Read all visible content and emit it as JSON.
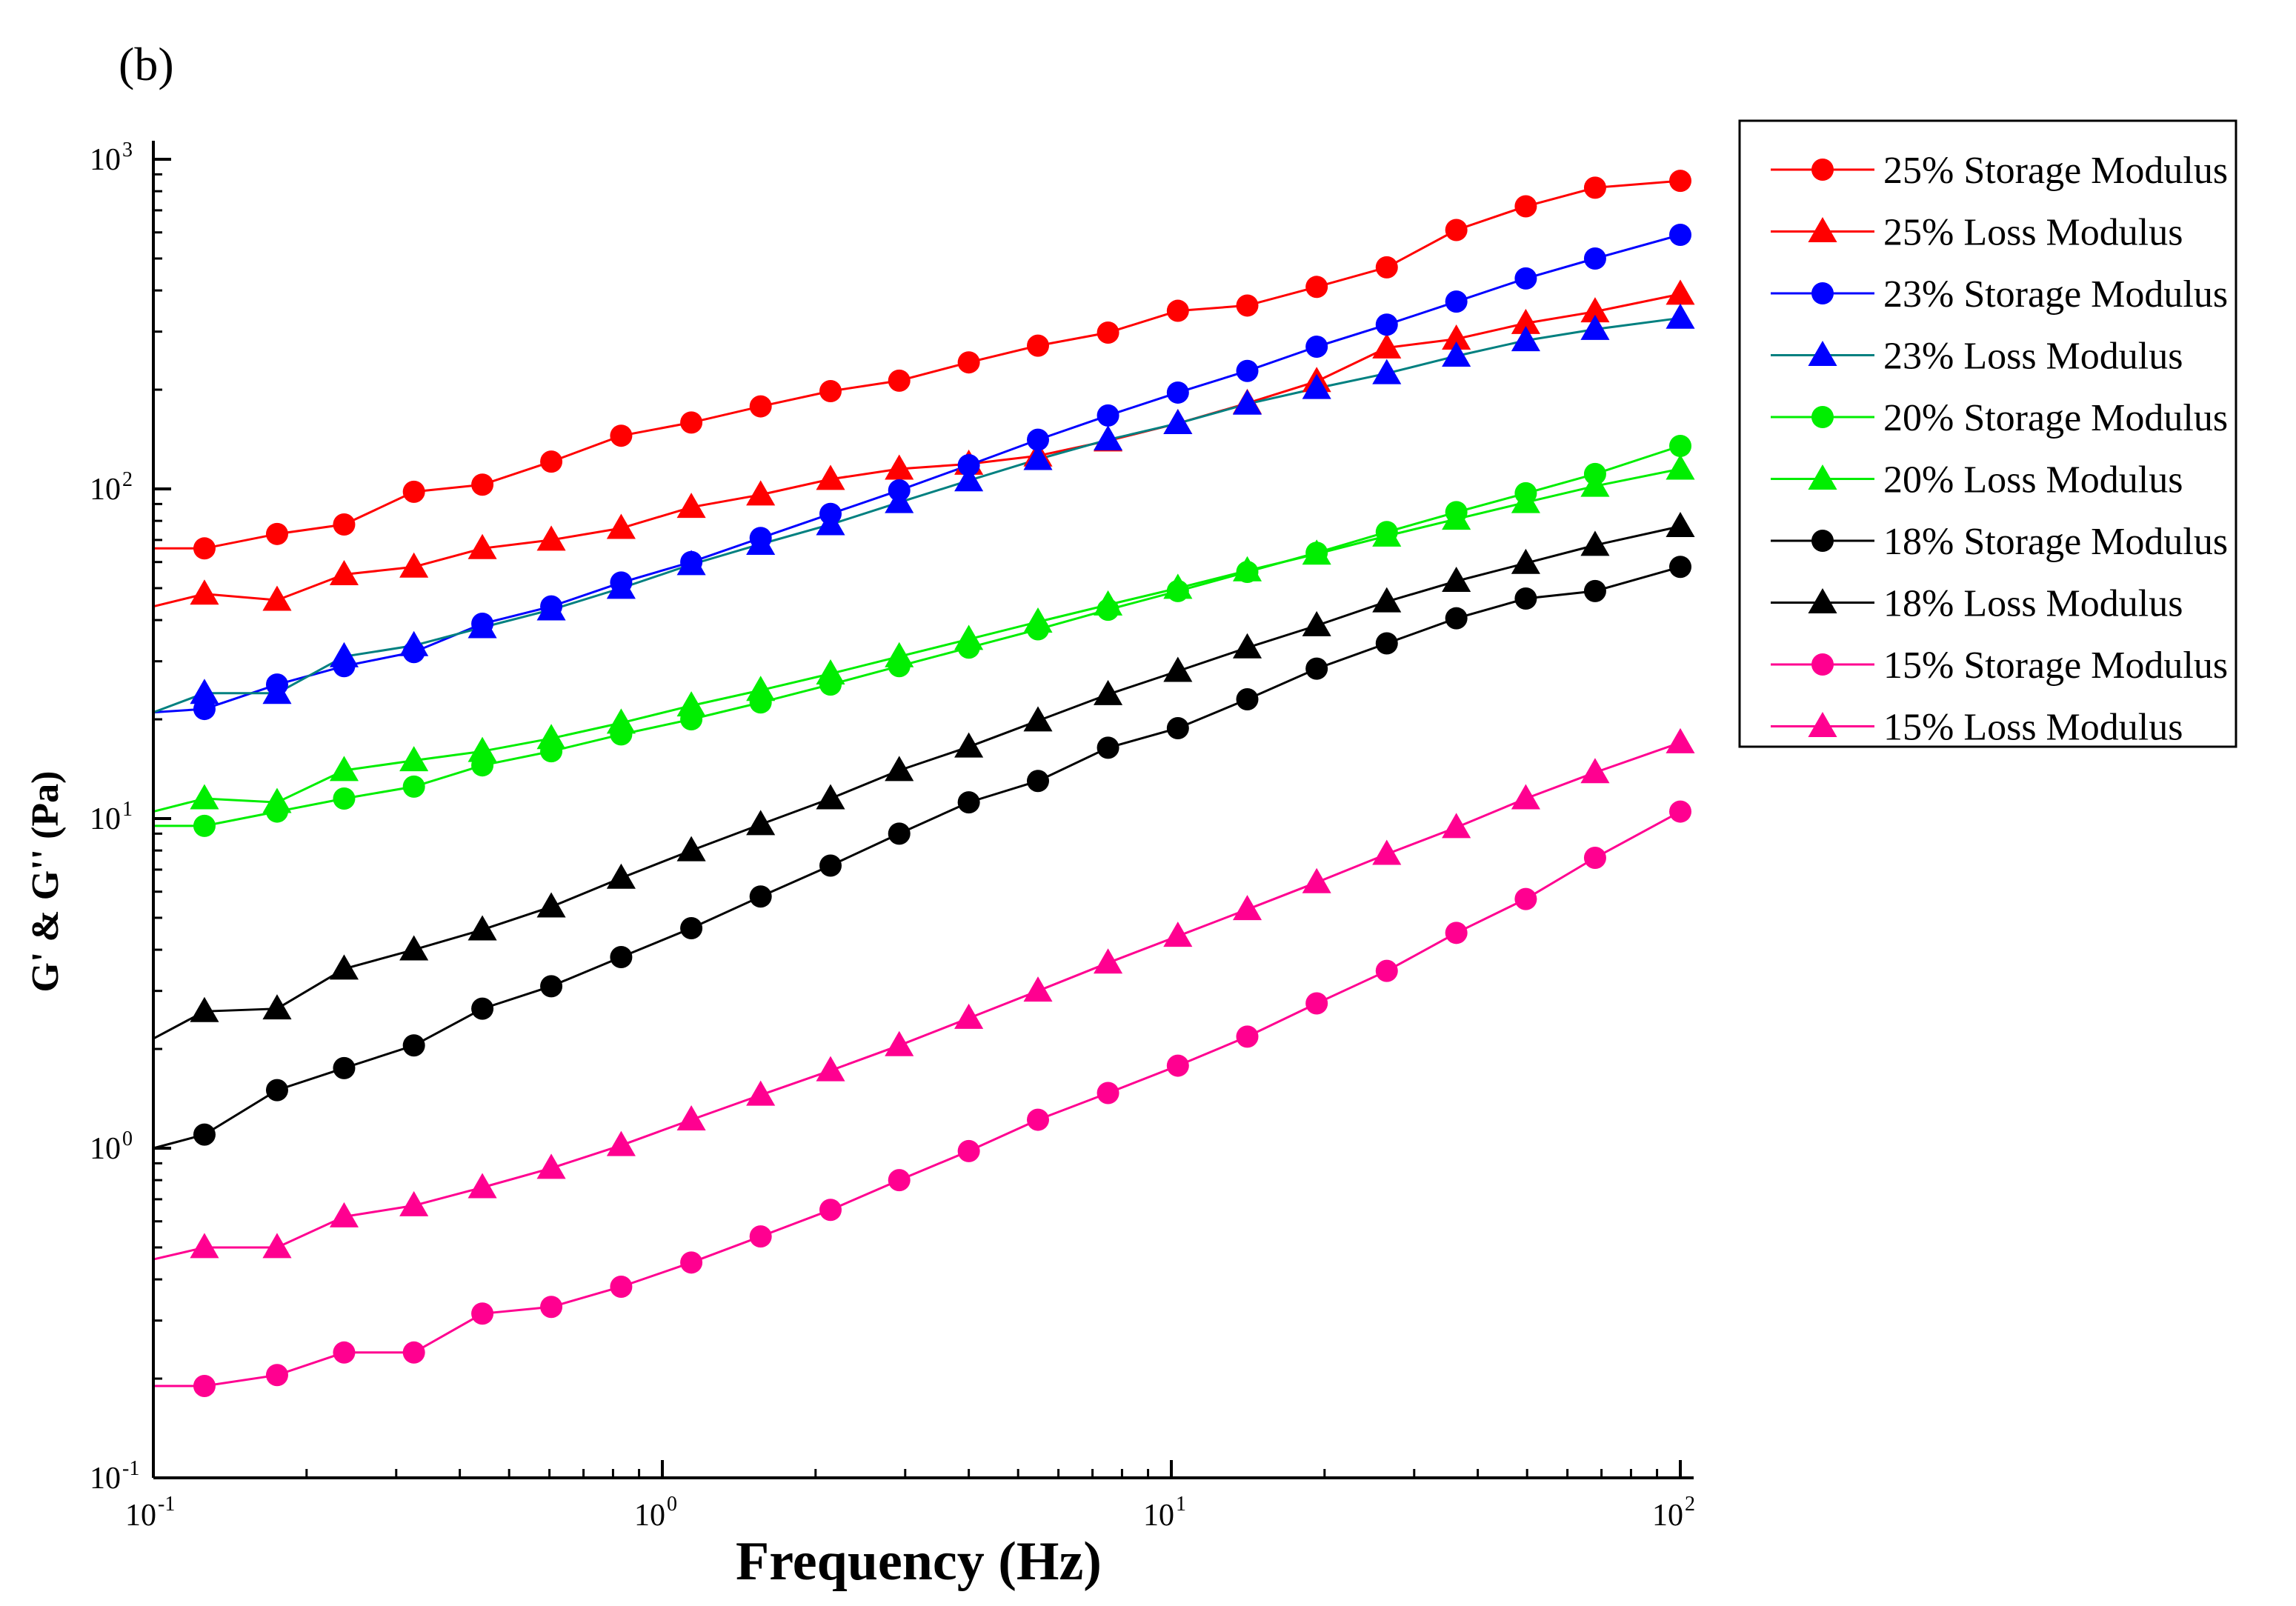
{
  "chart_data": {
    "type": "line",
    "panel_label": "(b)",
    "xlabel": "Frequency (Hz)",
    "ylabel": "G' & G'' (Pa)",
    "xscale": "log",
    "yscale": "log",
    "xlim": [
      0.1,
      100
    ],
    "ylim": [
      0.1,
      1000
    ],
    "x_ticks": [
      {
        "base": "10",
        "exp": "-1"
      },
      {
        "base": "10",
        "exp": "0"
      },
      {
        "base": "10",
        "exp": "1"
      },
      {
        "base": "10",
        "exp": "2"
      }
    ],
    "y_ticks": [
      {
        "base": "10",
        "exp": "-1"
      },
      {
        "base": "10",
        "exp": "0"
      },
      {
        "base": "10",
        "exp": "1"
      },
      {
        "base": "10",
        "exp": "2"
      },
      {
        "base": "10",
        "exp": "3"
      }
    ],
    "legend_position": "right-top",
    "x": [
      0.1,
      0.126,
      0.175,
      0.237,
      0.325,
      0.443,
      0.605,
      0.83,
      1.14,
      1.56,
      2.14,
      2.92,
      4.0,
      5.47,
      7.51,
      10.3,
      14.1,
      19.3,
      26.5,
      36.3,
      49.7,
      68.0,
      100.0
    ],
    "series": [
      {
        "name": "25% Storage Modulus",
        "color": "#ff0000",
        "marker": "circle",
        "marker_from_index": 1,
        "values": [
          66,
          66,
          73,
          78,
          98,
          103,
          121,
          145,
          159,
          178,
          198,
          213,
          242,
          272,
          298,
          347,
          360,
          410,
          470,
          610,
          720,
          820,
          860
        ]
      },
      {
        "name": "25% Loss Modulus",
        "color": "#ff0000",
        "marker": "triangle",
        "marker_from_index": 1,
        "values": [
          44,
          48,
          46,
          55,
          58,
          66,
          70,
          76,
          88,
          96,
          107,
          115,
          119,
          126,
          140,
          158,
          182,
          212,
          268,
          285,
          318,
          345,
          390
        ]
      },
      {
        "name": "23% Storage Modulus",
        "color": "#0000ff",
        "marker": "circle",
        "marker_from_index": 1,
        "values": [
          21,
          21.5,
          25.5,
          29,
          32,
          39,
          44,
          52,
          60,
          71,
          84,
          99,
          118,
          141,
          167,
          196,
          228,
          270,
          315,
          370,
          435,
          500,
          590
        ]
      },
      {
        "name": "23% Loss Modulus",
        "color": "#008080",
        "marker": "triangle",
        "marker_color": "#0000ff",
        "marker_from_index": 1,
        "values": [
          21,
          24,
          24,
          31,
          33.5,
          38,
          43,
          50,
          59,
          68,
          78,
          91,
          106,
          123,
          141,
          158,
          181,
          202,
          224,
          253,
          282,
          305,
          330
        ]
      },
      {
        "name": "20% Storage Modulus",
        "color": "#00ee00",
        "marker": "circle",
        "marker_from_index": 1,
        "values": [
          9.5,
          9.5,
          10.5,
          11.5,
          12.5,
          14.5,
          16,
          18,
          20,
          22.5,
          25.5,
          29,
          33,
          37.5,
          43,
          49,
          56,
          64,
          74,
          85,
          97,
          111,
          135
        ]
      },
      {
        "name": "20% Loss Modulus",
        "color": "#00ee00",
        "marker": "triangle",
        "marker_from_index": 1,
        "values": [
          10.5,
          11.5,
          11.2,
          14,
          15,
          16,
          17.5,
          19.5,
          22,
          24.5,
          27.5,
          31,
          35,
          39.5,
          44.5,
          50,
          56.5,
          63.5,
          72,
          81,
          91,
          102,
          115
        ]
      },
      {
        "name": "18% Storage Modulus",
        "color": "#000000",
        "marker": "circle",
        "marker_from_index": 1,
        "values": [
          1.0,
          1.1,
          1.5,
          1.75,
          2.05,
          2.65,
          3.1,
          3.8,
          4.65,
          5.8,
          7.2,
          9.0,
          11.2,
          13.0,
          16.4,
          18.8,
          23.0,
          28.5,
          34,
          40.5,
          46.5,
          49,
          58
        ]
      },
      {
        "name": "18% Loss Modulus",
        "color": "#000000",
        "marker": "triangle",
        "marker_from_index": 1,
        "values": [
          2.15,
          2.6,
          2.65,
          3.5,
          4.0,
          4.6,
          5.4,
          6.6,
          8.0,
          9.6,
          11.5,
          14,
          16.5,
          19.8,
          23.8,
          28,
          33,
          38.5,
          45.5,
          52.5,
          59.5,
          67.5,
          77
        ]
      },
      {
        "name": "15% Storage Modulus",
        "color": "#ff0090",
        "marker": "circle",
        "marker_from_index": 1,
        "values": [
          0.19,
          0.19,
          0.205,
          0.24,
          0.24,
          0.315,
          0.33,
          0.38,
          0.45,
          0.54,
          0.65,
          0.8,
          0.98,
          1.22,
          1.47,
          1.78,
          2.18,
          2.75,
          3.45,
          4.5,
          5.7,
          7.6,
          10.5
        ]
      },
      {
        "name": "15% Loss Modulus",
        "color": "#ff0090",
        "marker": "triangle",
        "marker_from_index": 1,
        "values": [
          0.46,
          0.5,
          0.5,
          0.62,
          0.67,
          0.76,
          0.87,
          1.02,
          1.22,
          1.45,
          1.72,
          2.05,
          2.48,
          3.0,
          3.65,
          4.4,
          5.3,
          6.4,
          7.8,
          9.4,
          11.5,
          13.8,
          17
        ]
      }
    ]
  }
}
